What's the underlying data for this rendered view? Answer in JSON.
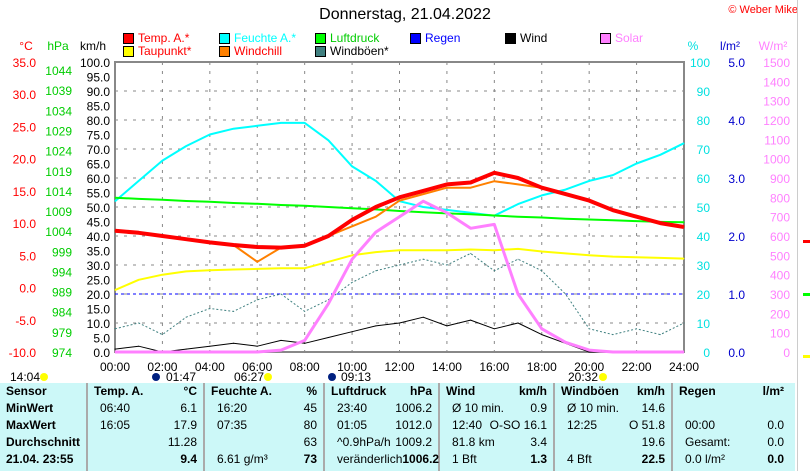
{
  "header": {
    "title": "Donnerstag, 21.04.2022",
    "copyright": "© Weber Mike"
  },
  "legend": [
    {
      "label": "Temp. A.*",
      "color": "#ff0000",
      "text_color": "#ff0000"
    },
    {
      "label": "Taupunkt*",
      "color": "#ffff00",
      "text_color": "#ff0000"
    },
    {
      "label": "Feuchte A.*",
      "color": "#00ffff",
      "text_color": "#00ffff"
    },
    {
      "label": "Windchill",
      "color": "#ff8000",
      "text_color": "#ff0000"
    },
    {
      "label": "Luftdruck",
      "color": "#00ff00",
      "text_color": "#00cc00"
    },
    {
      "label": "Windböen*",
      "color": "#408080",
      "text_color": "#000000"
    },
    {
      "label": "Regen",
      "color": "#0000ff",
      "text_color": "#0000ff"
    },
    {
      "label": "Wind",
      "color": "#000000",
      "text_color": "#000000"
    },
    {
      "label": "Solar",
      "color": "#ff80ff",
      "text_color": "#ff80ff"
    }
  ],
  "chart_data": {
    "type": "line",
    "title": "Donnerstag, 21.04.2022",
    "x": [
      0,
      1,
      2,
      3,
      4,
      5,
      6,
      7,
      8,
      9,
      10,
      11,
      12,
      13,
      14,
      15,
      16,
      17,
      18,
      19,
      20,
      21,
      22,
      23,
      24
    ],
    "x_tick_labels": [
      "00:00",
      "02:00",
      "04:00",
      "06:00",
      "08:00",
      "10:00",
      "12:00",
      "14:00",
      "16:00",
      "18:00",
      "20:00",
      "22:00",
      "24:00"
    ],
    "axes": {
      "temp": {
        "unit": "°C",
        "range": [
          -10,
          35
        ],
        "ticks": [
          "35.0",
          "30.0",
          "25.0",
          "20.0",
          "15.0",
          "10.0",
          "5.0",
          "0.0",
          "-5.0",
          "-10.0"
        ],
        "color": "#ff0000"
      },
      "pressure": {
        "unit": "hPa",
        "range": [
          974,
          1046
        ],
        "ticks": [
          "1044",
          "1039",
          "1034",
          "1029",
          "1024",
          "1019",
          "1014",
          "1009",
          "1004",
          "999",
          "994",
          "989",
          "984",
          "979",
          "974"
        ],
        "color": "#00cc00"
      },
      "speed": {
        "unit": "km/h",
        "range": [
          0,
          100
        ],
        "ticks": [
          "100.0",
          "95.0",
          "90.0",
          "85.0",
          "80.0",
          "75.0",
          "70.0",
          "65.0",
          "60.0",
          "55.0",
          "50.0",
          "45.0",
          "40.0",
          "35.0",
          "30.0",
          "25.0",
          "20.0",
          "15.0",
          "10.0",
          "5.0",
          "0.0"
        ],
        "color": "#000000"
      },
      "humidity": {
        "unit": "%",
        "range": [
          0,
          100
        ],
        "ticks": [
          "100",
          "90",
          "80",
          "70",
          "60",
          "50",
          "40",
          "30",
          "20",
          "10",
          "0"
        ],
        "color": "#00e0e0"
      },
      "rain": {
        "unit": "l/m²",
        "range": [
          0,
          5
        ],
        "ticks": [
          "5.0",
          "4.0",
          "3.0",
          "2.0",
          "1.0",
          "0.0"
        ],
        "color": "#0000cc"
      },
      "solar": {
        "unit": "W/m²",
        "range": [
          0,
          1500
        ],
        "ticks": [
          "1500",
          "1400",
          "1300",
          "1200",
          "1100",
          "1000",
          "900",
          "800",
          "700",
          "600",
          "500",
          "400",
          "300",
          "200",
          "100",
          "0"
        ],
        "color": "#ff80ff"
      }
    },
    "series": [
      {
        "name": "Feuchte A.*",
        "axis": "humidity",
        "color": "#00ffff",
        "values": [
          52,
          59,
          66,
          71,
          75,
          77,
          78,
          79,
          79,
          73,
          64,
          59,
          52,
          50,
          49,
          48,
          47,
          51,
          54,
          56,
          59,
          61,
          65,
          68,
          72
        ]
      },
      {
        "name": "Luftdruck",
        "axis": "pressure",
        "color": "#00ff00",
        "values": [
          1012.3,
          1012.0,
          1011.8,
          1011.5,
          1011.3,
          1011.0,
          1010.8,
          1010.5,
          1010.3,
          1010.0,
          1009.7,
          1009.4,
          1009.0,
          1008.7,
          1008.4,
          1008.2,
          1007.9,
          1007.6,
          1007.4,
          1007.1,
          1006.9,
          1006.7,
          1006.5,
          1006.3,
          1006.2
        ]
      },
      {
        "name": "Taupunkt*",
        "axis": "temp",
        "color": "#ffff00",
        "values": [
          -0.4,
          1.2,
          2.0,
          2.5,
          2.7,
          2.8,
          2.9,
          3.0,
          3.0,
          4.0,
          5.0,
          5.5,
          5.8,
          5.8,
          5.8,
          5.9,
          5.8,
          6.0,
          5.6,
          5.3,
          5.0,
          4.8,
          4.7,
          4.6,
          4.5
        ]
      },
      {
        "name": "Windchill",
        "axis": "temp",
        "color": "#ff8000",
        "values": [
          8.8,
          8.5,
          8.0,
          7.5,
          7.0,
          6.6,
          4.0,
          6.2,
          6.5,
          8.0,
          9.5,
          11.0,
          13.5,
          14.5,
          15.5,
          15.5,
          16.5,
          16.0,
          15.5,
          14.5,
          13.5,
          12.0,
          11.0,
          10.0,
          9.4
        ]
      },
      {
        "name": "Temp. A.*",
        "axis": "temp",
        "color": "#ff0000",
        "values": [
          8.8,
          8.5,
          8.0,
          7.5,
          7.0,
          6.6,
          6.3,
          6.2,
          6.5,
          8.0,
          10.5,
          12.5,
          14.0,
          15.0,
          16.0,
          16.3,
          17.8,
          17.0,
          15.5,
          14.5,
          13.5,
          12.0,
          11.0,
          10.0,
          9.4
        ]
      },
      {
        "name": "Windböen*",
        "axis": "speed",
        "color": "#408080",
        "values": [
          8,
          10,
          6,
          12,
          15,
          14,
          18,
          20,
          14,
          18,
          24,
          28,
          30,
          32,
          30,
          34,
          28,
          32,
          28,
          20,
          8,
          6,
          8,
          6,
          10
        ]
      },
      {
        "name": "Wind",
        "axis": "speed",
        "color": "#000000",
        "values": [
          1,
          2,
          0,
          1,
          2,
          3,
          2,
          4,
          3,
          5,
          7,
          9,
          10,
          12,
          9,
          11,
          8,
          10,
          6,
          3,
          0,
          0,
          0,
          0,
          0
        ]
      },
      {
        "name": "Solar",
        "axis": "solar",
        "color": "#ff80ff",
        "values": [
          0,
          0,
          0,
          0,
          0,
          0,
          0,
          10,
          60,
          250,
          480,
          620,
          700,
          780,
          720,
          640,
          660,
          300,
          120,
          50,
          10,
          0,
          0,
          0,
          0
        ]
      }
    ],
    "reference_line": {
      "axis": "rain",
      "value": 1.0,
      "color": "#0000ff"
    },
    "grid": true,
    "sun_moon": [
      {
        "label": "14:04",
        "type": "moonset"
      },
      {
        "label": "01:47",
        "type": "moonrise"
      },
      {
        "label": "06:27",
        "type": "sunrise"
      },
      {
        "label": "09:13",
        "type": "moon"
      },
      {
        "label": "20:32",
        "type": "sunset"
      }
    ]
  },
  "table": {
    "columns": [
      {
        "head": [
          "Sensor",
          ""
        ],
        "rows": [
          [
            "MinWert",
            ""
          ],
          [
            "MaxWert",
            ""
          ],
          [
            "Durchschnitt",
            ""
          ],
          [
            "21.04. 23:55",
            ""
          ]
        ],
        "bold_first": true
      },
      {
        "head": [
          "Temp. A.",
          "°C"
        ],
        "rows": [
          [
            "06:40",
            "6.1"
          ],
          [
            "16:05",
            "17.9"
          ],
          [
            "",
            "11.28"
          ],
          [
            "",
            "9.4"
          ]
        ]
      },
      {
        "head": [
          "Feuchte A.",
          "%"
        ],
        "rows": [
          [
            "16:20",
            "45"
          ],
          [
            "07:35",
            "80"
          ],
          [
            "",
            "63"
          ],
          [
            "6.61 g/m³",
            "73"
          ]
        ]
      },
      {
        "head": [
          "Luftdruck",
          "hPa"
        ],
        "rows": [
          [
            "23:40",
            "1006.2"
          ],
          [
            "01:05",
            "1012.0"
          ],
          [
            "^0.9hPa/h",
            "1009.2"
          ],
          [
            "veränderlich",
            "1006.2"
          ]
        ]
      },
      {
        "head": [
          "Wind",
          "km/h"
        ],
        "rows": [
          [
            "Ø 10 min.",
            "0.9"
          ],
          [
            "12:40",
            "O-SO 16.1"
          ],
          [
            "81.8 km",
            "3.4"
          ],
          [
            "1 Bft",
            "1.3"
          ]
        ]
      },
      {
        "head": [
          "Windböen",
          "km/h"
        ],
        "rows": [
          [
            "Ø 10 min.",
            "14.6"
          ],
          [
            "12:25",
            "O 51.8"
          ],
          [
            "",
            "19.6"
          ],
          [
            "4 Bft",
            "22.5"
          ]
        ]
      },
      {
        "head": [
          "Regen",
          "l/m²"
        ],
        "rows": [
          [
            "",
            ""
          ],
          [
            "00:00",
            "0.0"
          ],
          [
            "Gesamt:",
            "0.0"
          ],
          [
            "0.0 l/m²",
            "0.0"
          ]
        ]
      }
    ]
  }
}
